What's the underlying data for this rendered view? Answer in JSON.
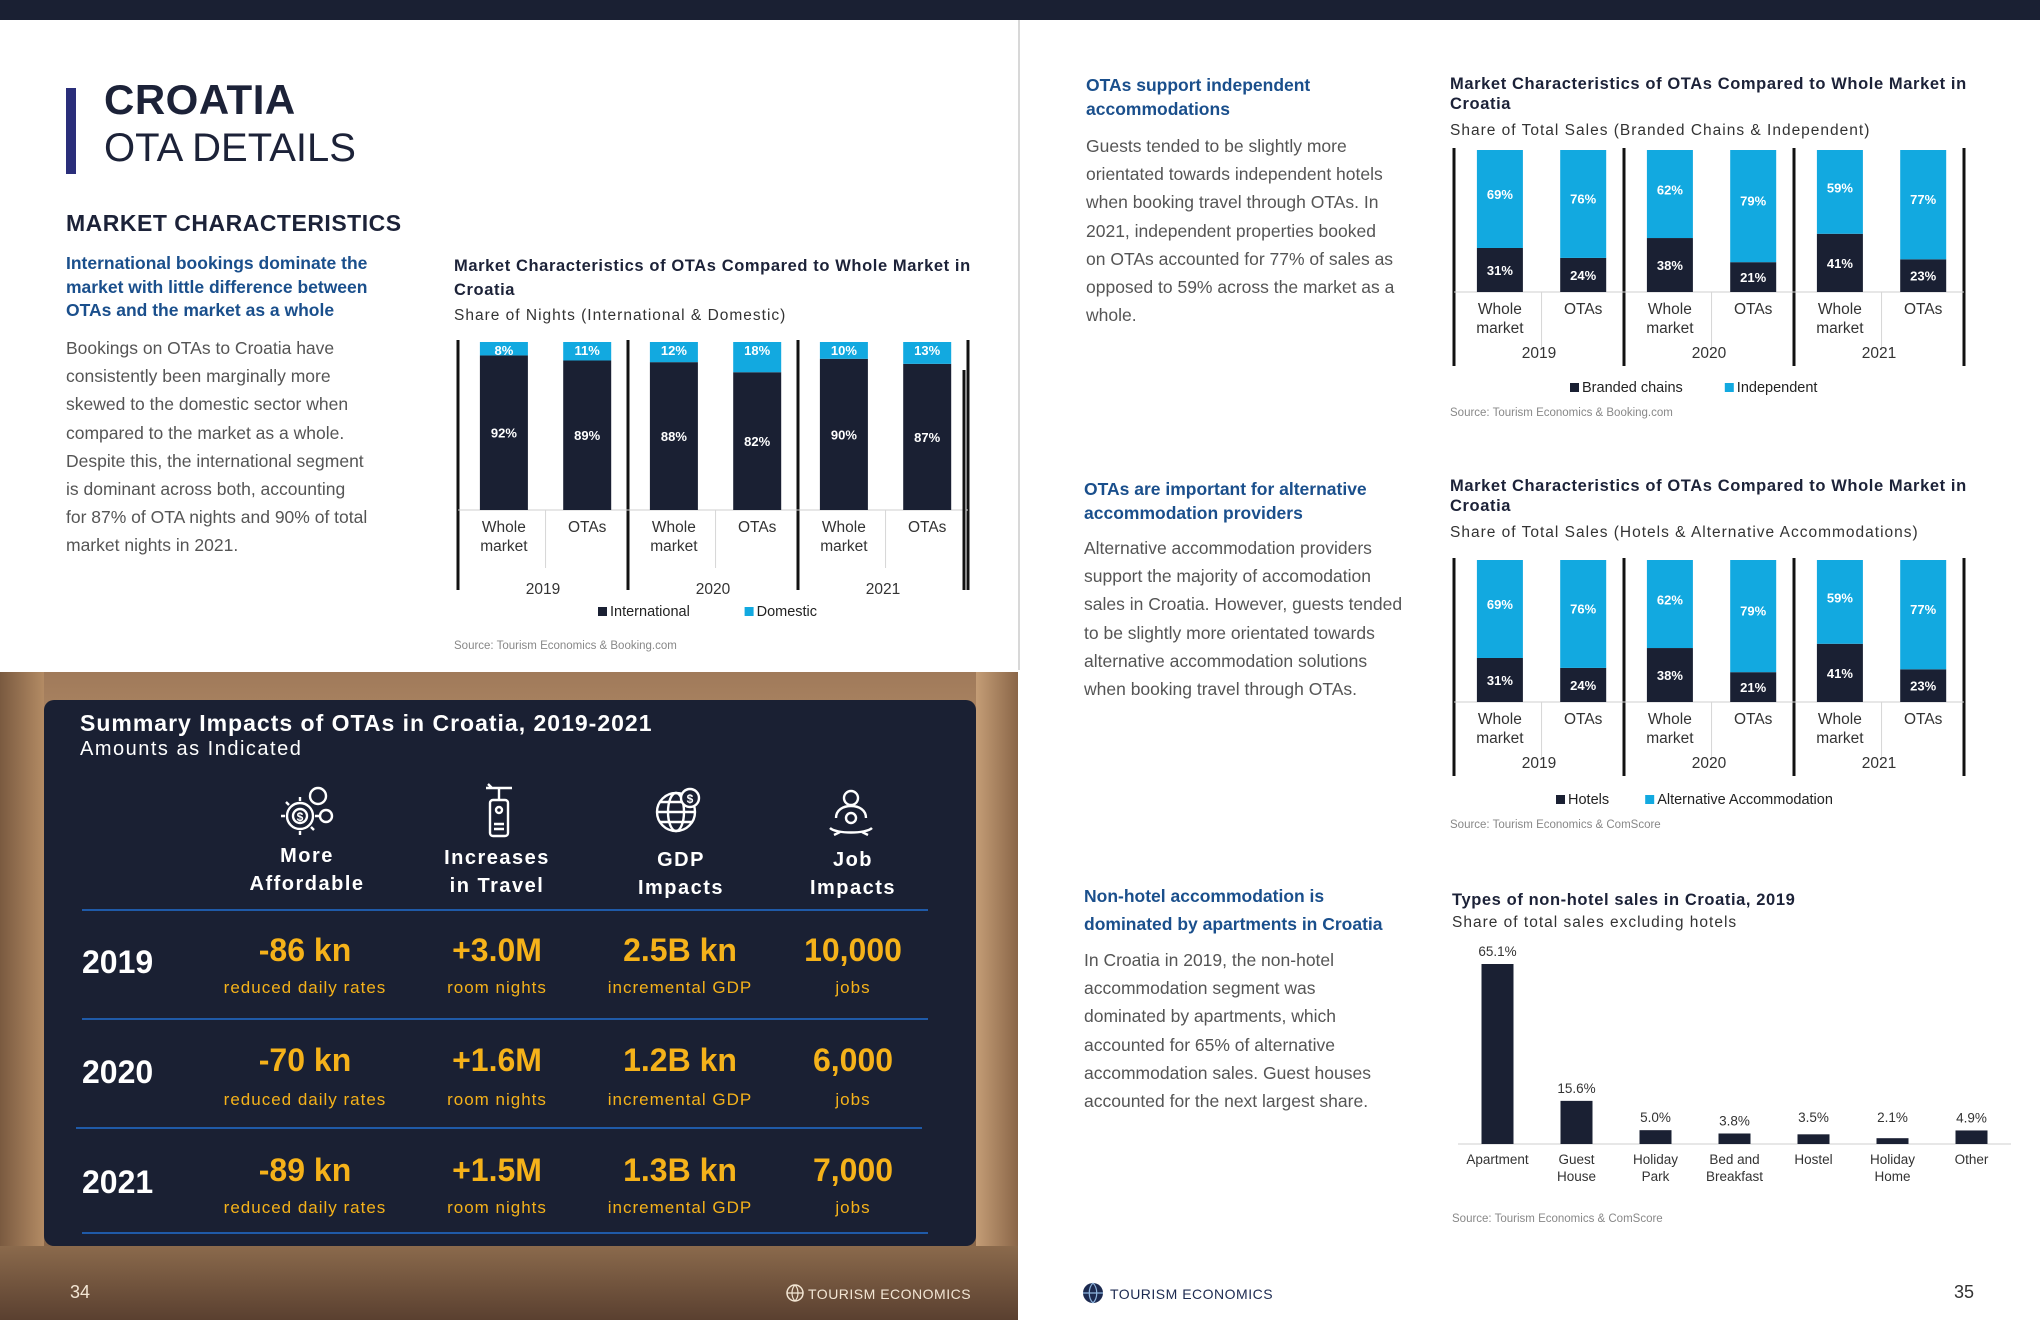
{
  "left": {
    "title1": "CROATIA",
    "title2": "OTA DETAILS",
    "section": "MARKET CHARACTERISTICS",
    "lead": [
      "International bookings dominate the",
      "market with little difference between",
      "OTAs and the market as a whole"
    ],
    "body": [
      "Bookings on OTAs to Croatia have",
      "consistently been marginally more",
      "skewed to the domestic sector when",
      "compared to the market as a whole.",
      "Despite this, the international segment",
      "is dominant across both, accounting",
      "for 87% of OTA nights and 90% of total",
      "market nights in 2021."
    ]
  },
  "chart_data": [
    {
      "type": "bar",
      "stacked": true,
      "title": "Market Characteristics of OTAs Compared to Whole Market in Croatia",
      "subtitle": "Share of Nights (International & Domestic)",
      "groups": [
        "2019",
        "2020",
        "2021"
      ],
      "categories": [
        "Whole market",
        "OTAs",
        "Whole market",
        "OTAs",
        "Whole market",
        "OTAs"
      ],
      "series": [
        {
          "name": "International",
          "color": "#1a2033",
          "values": [
            92,
            89,
            88,
            82,
            90,
            87
          ],
          "labels": [
            "92%",
            "89%",
            "88%",
            "82%",
            "90%",
            "87%"
          ]
        },
        {
          "name": "Domestic",
          "color": "#12a9e0",
          "values": [
            8,
            11,
            12,
            18,
            10,
            13
          ],
          "labels": [
            "8%",
            "11%",
            "12%",
            "18%",
            "10%",
            "13%"
          ]
        }
      ],
      "ylim": [
        0,
        100
      ],
      "source": "Source: Tourism Economics & Booking.com"
    },
    {
      "type": "bar",
      "stacked": true,
      "title": "Market Characteristics of OTAs Compared to Whole Market in Croatia",
      "subtitle": "Share of Total Sales (Branded Chains & Independent)",
      "groups": [
        "2019",
        "2020",
        "2021"
      ],
      "categories": [
        "Whole market",
        "OTAs",
        "Whole market",
        "OTAs",
        "Whole market",
        "OTAs"
      ],
      "series": [
        {
          "name": "Branded chains",
          "color": "#1a2033",
          "values": [
            31,
            24,
            38,
            21,
            41,
            23
          ],
          "labels": [
            "31%",
            "24%",
            "38%",
            "21%",
            "41%",
            "23%"
          ]
        },
        {
          "name": "Independent",
          "color": "#12a9e0",
          "values": [
            69,
            76,
            62,
            79,
            59,
            77
          ],
          "labels": [
            "69%",
            "76%",
            "62%",
            "79%",
            "59%",
            "77%"
          ]
        }
      ],
      "ylim": [
        0,
        100
      ],
      "source": "Source: Tourism Economics & Booking.com"
    },
    {
      "type": "bar",
      "stacked": true,
      "title": "Market Characteristics of OTAs Compared to Whole Market in Croatia",
      "subtitle": "Share of Total Sales (Hotels & Alternative Accommodations)",
      "groups": [
        "2019",
        "2020",
        "2021"
      ],
      "categories": [
        "Whole market",
        "OTAs",
        "Whole market",
        "OTAs",
        "Whole market",
        "OTAs"
      ],
      "series": [
        {
          "name": "Hotels",
          "color": "#1a2033",
          "values": [
            31,
            24,
            38,
            21,
            41,
            23
          ],
          "labels": [
            "31%",
            "24%",
            "38%",
            "21%",
            "41%",
            "23%"
          ]
        },
        {
          "name": "Alternative Accommodation",
          "color": "#12a9e0",
          "values": [
            69,
            76,
            62,
            79,
            59,
            77
          ],
          "labels": [
            "69%",
            "76%",
            "62%",
            "79%",
            "59%",
            "77%"
          ]
        }
      ],
      "ylim": [
        0,
        100
      ],
      "source": "Source: Tourism Economics & ComScore"
    },
    {
      "type": "bar",
      "title": "Types of non-hotel sales in Croatia, 2019",
      "subtitle": "Share of total sales excluding hotels",
      "categories": [
        "Apartment",
        "Guest House",
        "Holiday Park",
        "Bed and Breakfast",
        "Hostel",
        "Holiday Home",
        "Other"
      ],
      "values": [
        65.1,
        15.6,
        5.0,
        3.8,
        3.5,
        2.1,
        4.9
      ],
      "labels": [
        "65.1%",
        "15.6%",
        "5.0%",
        "3.8%",
        "3.5%",
        "2.1%",
        "4.9%"
      ],
      "color": "#1a2033",
      "ylim": [
        0,
        65.1
      ],
      "source": "Source: Tourism Economics & ComScore"
    }
  ],
  "summary": {
    "title": "Summary Impacts of OTAs in Croatia, 2019-2021",
    "subtitle": "Amounts as Indicated",
    "columns": [
      {
        "icon": "gears-dollar-icon",
        "line1": "More",
        "line2": "Affordable"
      },
      {
        "icon": "travel-tag-icon",
        "line1": "Increases",
        "line2": "in Travel"
      },
      {
        "icon": "globe-dollar-icon",
        "line1": "GDP",
        "line2": "Impacts"
      },
      {
        "icon": "worker-icon",
        "line1": "Job",
        "line2": "Impacts"
      }
    ],
    "rows": [
      {
        "year": "2019",
        "cells": [
          {
            "v": "-86 kn",
            "l": "reduced daily rates"
          },
          {
            "v": "+3.0M",
            "l": "room nights"
          },
          {
            "v": "2.5B kn",
            "l": "incremental GDP"
          },
          {
            "v": "10,000",
            "l": "jobs"
          }
        ]
      },
      {
        "year": "2020",
        "cells": [
          {
            "v": "-70 kn",
            "l": "reduced daily rates"
          },
          {
            "v": "+1.6M",
            "l": "room nights"
          },
          {
            "v": "1.2B kn",
            "l": "incremental GDP"
          },
          {
            "v": "6,000",
            "l": "jobs"
          }
        ]
      },
      {
        "year": "2021",
        "cells": [
          {
            "v": "-89 kn",
            "l": "reduced daily rates"
          },
          {
            "v": "+1.5M",
            "l": "room nights"
          },
          {
            "v": "1.3B kn",
            "l": "incremental GDP"
          },
          {
            "v": "7,000",
            "l": "jobs"
          }
        ]
      }
    ]
  },
  "right": {
    "sec1": {
      "lead": [
        "OTAs support independent",
        "accommodations"
      ],
      "body": [
        "Guests tended to be slightly more",
        "orientated towards independent hotels",
        "when booking travel through OTAs. In",
        "2021, independent properties booked",
        "on OTAs accounted for 77% of sales as",
        "opposed to 59% across the market as a",
        "whole."
      ]
    },
    "sec2": {
      "lead": [
        "OTAs are important for alternative",
        "accommodation providers"
      ],
      "body": [
        "Alternative accommodation providers",
        "support the majority of accomodation",
        "sales in Croatia. However, guests tended",
        "to be slightly more orientated towards",
        "alternative accommodation solutions",
        "when booking travel through OTAs."
      ]
    },
    "sec3": {
      "lead": [
        "Non-hotel accommodation is",
        "dominated by apartments in Croatia"
      ],
      "body": [
        "In Croatia in 2019, the non-hotel",
        "accommodation segment was",
        "dominated by apartments, which",
        "accounted for 65% of alternative",
        "accommodation sales. Guest houses",
        "accounted for the next largest share."
      ]
    }
  },
  "footer": {
    "left_page": "34",
    "right_page": "35",
    "brand": "TOURISM ECONOMICS"
  },
  "colors": {
    "navy": "#1a2033",
    "cyan": "#12a9e0",
    "gold": "#f5b21a",
    "link": "#1a4f8c"
  }
}
